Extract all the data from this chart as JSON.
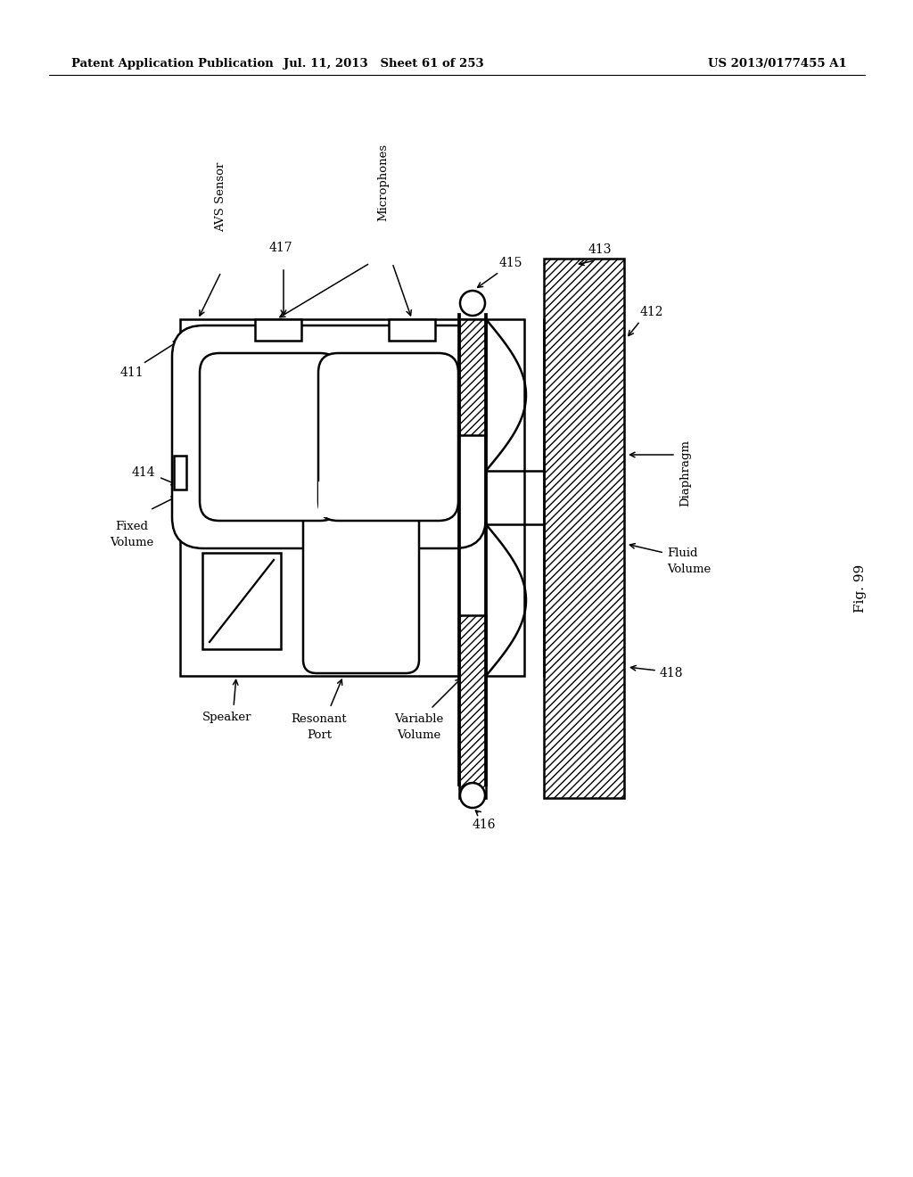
{
  "header_left": "Patent Application Publication",
  "header_mid": "Jul. 11, 2013   Sheet 61 of 253",
  "header_right": "US 2013/0177455 A1",
  "fig_label": "Fig. 99",
  "bg_color": "#ffffff",
  "line_color": "#000000"
}
